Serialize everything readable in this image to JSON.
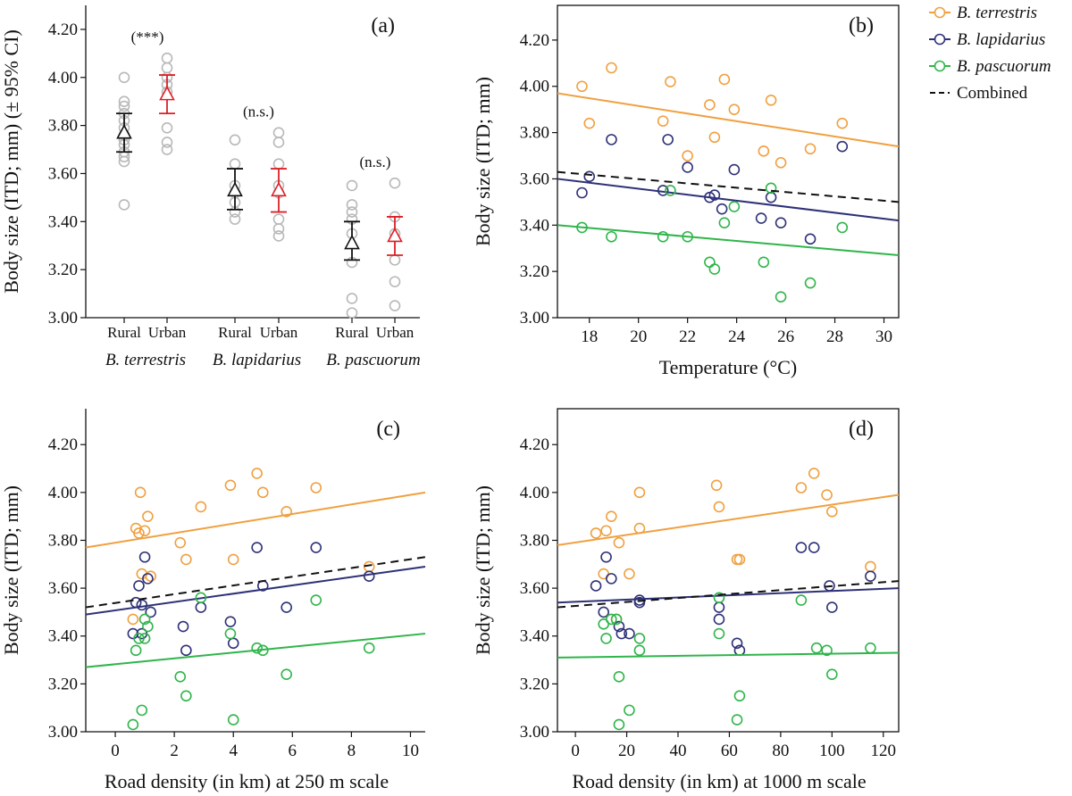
{
  "colors": {
    "terrestris": "#f0a040",
    "lapidarius": "#2e3177",
    "pascuorum": "#2fb54a",
    "combined": "#111111",
    "rural": "#111111",
    "urban": "#dd1f26",
    "raw_points": "#b8b8b8"
  },
  "legend": {
    "items": [
      {
        "key": "terrestris",
        "label": "B. terrestris",
        "style": "marker-line",
        "italic": true
      },
      {
        "key": "lapidarius",
        "label": "B. lapidarius",
        "style": "marker-line",
        "italic": true
      },
      {
        "key": "pascuorum",
        "label": "B. pascuorum",
        "style": "marker-line",
        "italic": true
      },
      {
        "key": "combined",
        "label": "Combined",
        "style": "dashed",
        "italic": false
      }
    ]
  },
  "chart_data": [
    {
      "id": "a",
      "type": "scatter",
      "panel_label": "(a)",
      "ylabel": "Body size (ITD; mm) (± 95% CI)",
      "ylim": [
        3.0,
        4.3
      ],
      "yticks": [
        "3.00",
        "3.20",
        "3.40",
        "3.60",
        "3.80",
        "4.00",
        "4.20"
      ],
      "groups": [
        {
          "label": "B. terrestris",
          "significance": "(***)",
          "subgroups": [
            {
              "label": "Rural",
              "mean": 3.77,
              "ci": [
                3.69,
                3.85
              ],
              "points": [
                3.47,
                3.65,
                3.67,
                3.69,
                3.72,
                3.74,
                3.76,
                3.79,
                3.82,
                3.85,
                3.88,
                3.9,
                4.0
              ]
            },
            {
              "label": "Urban",
              "mean": 3.93,
              "ci": [
                3.85,
                4.01
              ],
              "points": [
                3.7,
                3.73,
                3.79,
                3.94,
                3.97,
                4.0,
                4.04,
                4.08
              ]
            }
          ]
        },
        {
          "label": "B. lapidarius",
          "significance": "(n.s.)",
          "subgroups": [
            {
              "label": "Rural",
              "mean": 3.53,
              "ci": [
                3.45,
                3.62
              ],
              "points": [
                3.41,
                3.44,
                3.48,
                3.52,
                3.55,
                3.64,
                3.74
              ]
            },
            {
              "label": "Urban",
              "mean": 3.53,
              "ci": [
                3.44,
                3.62
              ],
              "points": [
                3.34,
                3.37,
                3.41,
                3.52,
                3.55,
                3.64,
                3.73,
                3.77
              ]
            }
          ]
        },
        {
          "label": "B. pascuorum",
          "significance": "(n.s.)",
          "subgroups": [
            {
              "label": "Rural",
              "mean": 3.31,
              "ci": [
                3.24,
                3.4
              ],
              "points": [
                3.02,
                3.08,
                3.23,
                3.35,
                3.41,
                3.44,
                3.47,
                3.55
              ]
            },
            {
              "label": "Urban",
              "mean": 3.34,
              "ci": [
                3.26,
                3.42
              ],
              "points": [
                3.05,
                3.15,
                3.24,
                3.35,
                3.42,
                3.56
              ]
            }
          ]
        }
      ]
    },
    {
      "id": "b",
      "type": "scatter",
      "panel_label": "(b)",
      "xlabel": "Temperature (°C)",
      "ylabel": "Body size (ITD; mm)",
      "xlim": [
        16.7,
        30.6
      ],
      "ylim": [
        3.0,
        4.35
      ],
      "xticks": [
        "18",
        "20",
        "22",
        "24",
        "26",
        "28",
        "30"
      ],
      "yticks": [
        "3.00",
        "3.20",
        "3.40",
        "3.60",
        "3.80",
        "4.00",
        "4.20"
      ],
      "series": [
        {
          "key": "terrestris",
          "name": "B. terrestris",
          "points": [
            [
              17.7,
              4.0
            ],
            [
              18.0,
              3.84
            ],
            [
              18.9,
              4.08
            ],
            [
              21.0,
              3.85
            ],
            [
              21.3,
              4.02
            ],
            [
              22.0,
              3.7
            ],
            [
              22.9,
              3.92
            ],
            [
              23.1,
              3.78
            ],
            [
              23.5,
              4.03
            ],
            [
              23.9,
              3.9
            ],
            [
              25.1,
              3.72
            ],
            [
              25.4,
              3.94
            ],
            [
              25.8,
              3.67
            ],
            [
              27.0,
              3.73
            ],
            [
              28.3,
              3.84
            ]
          ],
          "line": [
            [
              16.7,
              3.97
            ],
            [
              30.6,
              3.74
            ]
          ]
        },
        {
          "key": "lapidarius",
          "name": "B. lapidarius",
          "points": [
            [
              17.7,
              3.54
            ],
            [
              18.0,
              3.61
            ],
            [
              18.9,
              3.77
            ],
            [
              21.0,
              3.55
            ],
            [
              21.2,
              3.77
            ],
            [
              22.0,
              3.65
            ],
            [
              22.9,
              3.52
            ],
            [
              23.1,
              3.53
            ],
            [
              23.4,
              3.47
            ],
            [
              23.9,
              3.64
            ],
            [
              25.0,
              3.43
            ],
            [
              25.4,
              3.52
            ],
            [
              25.8,
              3.41
            ],
            [
              27.0,
              3.34
            ],
            [
              28.3,
              3.74
            ]
          ],
          "line": [
            [
              16.7,
              3.6
            ],
            [
              30.6,
              3.42
            ]
          ]
        },
        {
          "key": "pascuorum",
          "name": "B. pascuorum",
          "points": [
            [
              17.7,
              3.39
            ],
            [
              18.9,
              3.35
            ],
            [
              21.0,
              3.35
            ],
            [
              21.3,
              3.55
            ],
            [
              22.0,
              3.35
            ],
            [
              22.9,
              3.24
            ],
            [
              23.1,
              3.21
            ],
            [
              23.5,
              3.41
            ],
            [
              23.9,
              3.48
            ],
            [
              25.1,
              3.24
            ],
            [
              25.4,
              3.56
            ],
            [
              25.8,
              3.09
            ],
            [
              27.0,
              3.15
            ],
            [
              28.3,
              3.39
            ]
          ],
          "line": [
            [
              16.7,
              3.4
            ],
            [
              30.6,
              3.27
            ]
          ]
        },
        {
          "key": "combined",
          "name": "Combined",
          "points": [],
          "line": [
            [
              16.7,
              3.63
            ],
            [
              30.6,
              3.5
            ]
          ]
        }
      ]
    },
    {
      "id": "c",
      "type": "scatter",
      "panel_label": "(c)",
      "xlabel": "Road density (in km) at 250 m scale",
      "ylabel": "Body size (ITD; mm)",
      "xlim": [
        -1.0,
        10.5
      ],
      "ylim": [
        3.0,
        4.35
      ],
      "xticks": [
        "0",
        "2",
        "4",
        "6",
        "8",
        "10"
      ],
      "yticks": [
        "3.00",
        "3.20",
        "3.40",
        "3.60",
        "3.80",
        "4.00",
        "4.20"
      ],
      "series": [
        {
          "key": "terrestris",
          "name": "B. terrestris",
          "points": [
            [
              0.6,
              3.47
            ],
            [
              0.7,
              3.85
            ],
            [
              0.8,
              3.83
            ],
            [
              0.85,
              4.0
            ],
            [
              0.9,
              3.66
            ],
            [
              1.0,
              3.84
            ],
            [
              1.1,
              3.9
            ],
            [
              1.2,
              3.65
            ],
            [
              2.2,
              3.79
            ],
            [
              2.4,
              3.72
            ],
            [
              2.9,
              3.94
            ],
            [
              3.9,
              4.03
            ],
            [
              4.0,
              3.72
            ],
            [
              4.8,
              4.08
            ],
            [
              5.0,
              4.0
            ],
            [
              5.8,
              3.92
            ],
            [
              6.8,
              4.02
            ],
            [
              8.6,
              3.69
            ]
          ],
          "line": [
            [
              -1.0,
              3.77
            ],
            [
              10.5,
              4.0
            ]
          ]
        },
        {
          "key": "lapidarius",
          "name": "B. lapidarius",
          "points": [
            [
              0.6,
              3.41
            ],
            [
              0.7,
              3.54
            ],
            [
              0.8,
              3.61
            ],
            [
              0.9,
              3.53
            ],
            [
              0.9,
              3.41
            ],
            [
              1.0,
              3.73
            ],
            [
              1.1,
              3.64
            ],
            [
              1.2,
              3.5
            ],
            [
              2.3,
              3.44
            ],
            [
              2.4,
              3.34
            ],
            [
              2.9,
              3.52
            ],
            [
              3.9,
              3.46
            ],
            [
              4.0,
              3.37
            ],
            [
              4.8,
              3.77
            ],
            [
              5.0,
              3.61
            ],
            [
              5.8,
              3.52
            ],
            [
              6.8,
              3.77
            ],
            [
              8.6,
              3.65
            ]
          ],
          "line": [
            [
              -1.0,
              3.49
            ],
            [
              10.5,
              3.69
            ]
          ]
        },
        {
          "key": "pascuorum",
          "name": "B. pascuorum",
          "points": [
            [
              0.6,
              3.03
            ],
            [
              0.7,
              3.34
            ],
            [
              0.8,
              3.39
            ],
            [
              0.9,
              3.09
            ],
            [
              1.0,
              3.39
            ],
            [
              1.0,
              3.47
            ],
            [
              1.1,
              3.44
            ],
            [
              2.2,
              3.23
            ],
            [
              2.4,
              3.15
            ],
            [
              2.9,
              3.56
            ],
            [
              3.9,
              3.41
            ],
            [
              4.0,
              3.05
            ],
            [
              4.8,
              3.35
            ],
            [
              5.0,
              3.34
            ],
            [
              5.8,
              3.24
            ],
            [
              6.8,
              3.55
            ],
            [
              8.6,
              3.35
            ]
          ],
          "line": [
            [
              -1.0,
              3.27
            ],
            [
              10.5,
              3.41
            ]
          ]
        },
        {
          "key": "combined",
          "name": "Combined",
          "points": [],
          "line": [
            [
              -1.0,
              3.52
            ],
            [
              10.5,
              3.73
            ]
          ]
        }
      ]
    },
    {
      "id": "d",
      "type": "scatter",
      "panel_label": "(d)",
      "xlabel": "Road density (in km) at 1000 m scale",
      "ylabel": "Body size (ITD; mm)",
      "xlim": [
        -7,
        126
      ],
      "ylim": [
        3.0,
        4.35
      ],
      "xticks": [
        "0",
        "20",
        "40",
        "60",
        "80",
        "100",
        "120"
      ],
      "yticks": [
        "3.00",
        "3.20",
        "3.40",
        "3.60",
        "3.80",
        "4.00",
        "4.20"
      ],
      "series": [
        {
          "key": "terrestris",
          "name": "B. terrestris",
          "points": [
            [
              8,
              3.83
            ],
            [
              11,
              3.66
            ],
            [
              12,
              3.84
            ],
            [
              14,
              3.9
            ],
            [
              16,
              3.47
            ],
            [
              17,
              3.79
            ],
            [
              21,
              3.66
            ],
            [
              25,
              4.0
            ],
            [
              25,
              3.85
            ],
            [
              55,
              4.03
            ],
            [
              56,
              3.94
            ],
            [
              63,
              3.72
            ],
            [
              64,
              3.72
            ],
            [
              88,
              4.02
            ],
            [
              93,
              4.08
            ],
            [
              98,
              3.99
            ],
            [
              100,
              3.92
            ],
            [
              115,
              3.69
            ]
          ],
          "line": [
            [
              -7,
              3.78
            ],
            [
              126,
              3.99
            ]
          ]
        },
        {
          "key": "lapidarius",
          "name": "B. lapidarius",
          "points": [
            [
              8,
              3.61
            ],
            [
              11,
              3.5
            ],
            [
              12,
              3.73
            ],
            [
              14,
              3.64
            ],
            [
              17,
              3.44
            ],
            [
              18,
              3.41
            ],
            [
              21,
              3.41
            ],
            [
              25,
              3.55
            ],
            [
              25,
              3.54
            ],
            [
              56,
              3.52
            ],
            [
              56,
              3.47
            ],
            [
              63,
              3.37
            ],
            [
              64,
              3.34
            ],
            [
              88,
              3.77
            ],
            [
              93,
              3.77
            ],
            [
              99,
              3.61
            ],
            [
              100,
              3.52
            ],
            [
              115,
              3.65
            ]
          ],
          "line": [
            [
              -7,
              3.54
            ],
            [
              126,
              3.6
            ]
          ]
        },
        {
          "key": "pascuorum",
          "name": "B. pascuorum",
          "points": [
            [
              11,
              3.45
            ],
            [
              12,
              3.39
            ],
            [
              14,
              3.47
            ],
            [
              16,
              3.47
            ],
            [
              17,
              3.23
            ],
            [
              17,
              3.03
            ],
            [
              21,
              3.09
            ],
            [
              25,
              3.39
            ],
            [
              25,
              3.34
            ],
            [
              56,
              3.56
            ],
            [
              56,
              3.41
            ],
            [
              63,
              3.05
            ],
            [
              64,
              3.15
            ],
            [
              88,
              3.55
            ],
            [
              94,
              3.35
            ],
            [
              98,
              3.34
            ],
            [
              100,
              3.24
            ],
            [
              115,
              3.35
            ]
          ],
          "line": [
            [
              -7,
              3.31
            ],
            [
              126,
              3.33
            ]
          ]
        },
        {
          "key": "combined",
          "name": "Combined",
          "points": [],
          "line": [
            [
              -7,
              3.52
            ],
            [
              126,
              3.63
            ]
          ]
        }
      ]
    }
  ]
}
